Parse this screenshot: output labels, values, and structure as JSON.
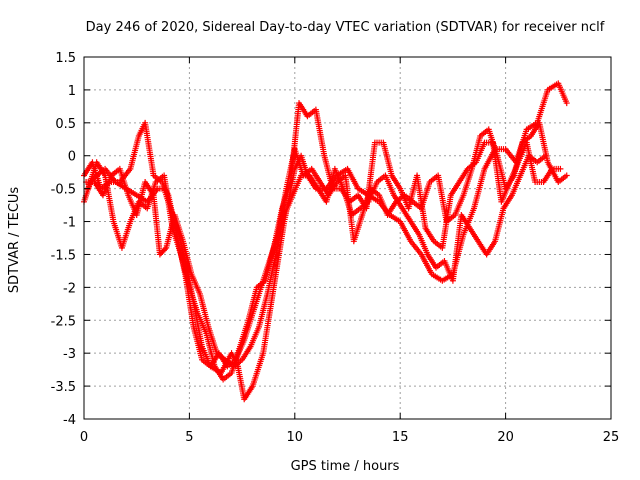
{
  "chart_data": {
    "type": "scatter",
    "title": "Day 246 of 2020, Sidereal Day-to-day VTEC variation (SDTVAR) for receiver nclf",
    "xlabel": "GPS time / hours",
    "ylabel": "SDTVAR / TECUs",
    "xlim": [
      0,
      25
    ],
    "ylim": [
      -4,
      1.5
    ],
    "xticks": [
      0,
      5,
      10,
      15,
      20,
      25
    ],
    "xtick_labels": [
      "0",
      "5",
      "10",
      "15",
      "20",
      "25"
    ],
    "yticks": [
      -4,
      -3.5,
      -3,
      -2.5,
      -2,
      -1.5,
      -1,
      -0.5,
      0,
      0.5,
      1,
      1.5
    ],
    "ytick_labels": [
      "-4",
      "-3.5",
      "-3",
      "-2.5",
      "-2",
      "-1.5",
      "-1",
      "-0.5",
      "0",
      "0.5",
      "1",
      "1.5"
    ],
    "grid": true,
    "marker": "plus",
    "color": "#ff0000",
    "series": [
      {
        "x": [
          0.0,
          0.3,
          0.6,
          1.0,
          1.5,
          2.0,
          2.5,
          3.0,
          3.5,
          3.8,
          4.2,
          4.5,
          4.8,
          5.0,
          5.3,
          5.6,
          6.0,
          6.5,
          7.0,
          7.3,
          7.6,
          8.0,
          8.5,
          9.0,
          9.5,
          10.0,
          10.3,
          10.6,
          11.0,
          11.5,
          12.0,
          12.5,
          13.0,
          13.5,
          14.0,
          14.5,
          15.0,
          15.5,
          16.0,
          16.5,
          17.0,
          17.5,
          18.0,
          18.5,
          19.0,
          19.5,
          20.0,
          20.5,
          21.0,
          21.5,
          22.0,
          22.5,
          22.9
        ],
        "y": [
          -0.7,
          -0.4,
          -0.3,
          -0.2,
          -0.4,
          -0.5,
          -0.6,
          -0.7,
          -0.5,
          -0.5,
          -0.9,
          -1.2,
          -1.6,
          -1.9,
          -2.4,
          -2.9,
          -3.2,
          -3.3,
          -3.0,
          -3.2,
          -3.7,
          -3.5,
          -3.0,
          -2.0,
          -1.0,
          -0.2,
          0.0,
          -0.3,
          -0.5,
          -0.5,
          -0.3,
          -0.2,
          -0.5,
          -0.6,
          -0.7,
          -0.9,
          -1.0,
          -1.3,
          -1.5,
          -1.8,
          -1.9,
          -1.8,
          -1.2,
          -0.8,
          -0.2,
          0.1,
          0.1,
          -0.1,
          0.4,
          0.5,
          1.0,
          1.1,
          0.8
        ]
      },
      {
        "x": [
          0.0,
          0.4,
          0.8,
          1.2,
          1.7,
          2.2,
          2.6,
          2.9,
          3.3,
          3.7,
          4.0,
          4.4,
          4.8,
          5.2,
          5.6,
          6.0,
          6.4,
          6.8,
          7.2,
          7.6,
          8.0,
          8.4,
          8.8,
          9.2,
          9.6,
          10.0,
          10.4,
          10.8,
          11.2,
          11.6,
          12.0,
          12.4,
          12.8,
          13.2,
          13.6,
          14.0,
          14.4,
          14.8,
          15.2,
          15.6,
          16.0,
          16.4,
          16.8,
          17.2,
          17.6,
          18.0,
          18.4,
          18.8,
          19.2,
          19.6,
          20.0,
          20.4,
          20.8,
          21.2,
          21.6,
          22.0,
          22.5,
          22.9
        ],
        "y": [
          -0.3,
          -0.1,
          -0.5,
          -0.4,
          -0.4,
          -0.2,
          0.3,
          0.5,
          -0.3,
          -0.4,
          -0.6,
          -1.2,
          -1.8,
          -2.6,
          -3.1,
          -3.2,
          -3.0,
          -3.2,
          -3.1,
          -2.8,
          -2.4,
          -2.0,
          -1.6,
          -1.2,
          -0.5,
          0.1,
          -0.3,
          -0.2,
          -0.4,
          -0.6,
          -0.4,
          -0.3,
          -1.3,
          -0.9,
          -0.5,
          -0.6,
          -0.9,
          -0.7,
          -0.6,
          -0.7,
          -0.8,
          -0.4,
          -0.3,
          -1.0,
          -0.9,
          -0.6,
          -0.2,
          0.3,
          0.4,
          0.0,
          -0.5,
          -0.3,
          0.2,
          0.3,
          0.5,
          -0.1,
          -0.4,
          -0.3
        ]
      },
      {
        "x": [
          0.2,
          0.6,
          1.0,
          1.4,
          1.8,
          2.2,
          2.6,
          3.0,
          3.4,
          3.8,
          4.2,
          4.6,
          5.0,
          5.4,
          5.8,
          6.2,
          6.6,
          7.0,
          7.4,
          7.8,
          8.2,
          8.6,
          9.0,
          9.4,
          9.8,
          10.2,
          10.6,
          11.0,
          11.4,
          11.8,
          12.2,
          12.6,
          13.0,
          13.4,
          13.8,
          14.2,
          14.6,
          15.0,
          15.4,
          15.8,
          16.2,
          16.6,
          17.0,
          17.4,
          17.8,
          18.2,
          18.6,
          19.0,
          19.4,
          19.8,
          20.2,
          20.6,
          21.0,
          21.4,
          21.8,
          22.2,
          22.6
        ],
        "y": [
          -0.5,
          -0.1,
          -0.3,
          -1.0,
          -1.4,
          -1.0,
          -0.7,
          -0.8,
          -0.4,
          -0.3,
          -1.1,
          -1.5,
          -2.0,
          -2.4,
          -2.7,
          -3.2,
          -3.4,
          -3.3,
          -2.9,
          -2.5,
          -2.0,
          -1.9,
          -1.4,
          -0.8,
          -0.4,
          0.8,
          0.6,
          0.7,
          0.0,
          -0.5,
          -0.5,
          -0.7,
          -0.6,
          -0.8,
          0.2,
          0.2,
          -0.3,
          -0.5,
          -0.8,
          -0.3,
          -1.1,
          -1.3,
          -1.4,
          -0.6,
          -0.4,
          -0.2,
          -0.1,
          0.2,
          0.2,
          -0.7,
          -0.4,
          -0.1,
          0.2,
          -0.4,
          -0.4,
          -0.2,
          -0.2
        ]
      },
      {
        "x": [
          0.1,
          0.5,
          0.9,
          1.3,
          1.7,
          2.1,
          2.5,
          2.9,
          3.3,
          3.6,
          3.9,
          4.3,
          4.7,
          5.1,
          5.5,
          5.9,
          6.3,
          6.7,
          7.1,
          7.5,
          7.9,
          8.3,
          8.7,
          9.1,
          9.5,
          9.9,
          10.3,
          10.7,
          11.1,
          11.5,
          11.9,
          12.3,
          12.7,
          13.1,
          13.5,
          13.9,
          14.3,
          14.7,
          15.1,
          15.5,
          15.9,
          16.3,
          16.7,
          17.1,
          17.5,
          17.9,
          18.3,
          18.7,
          19.1,
          19.5,
          19.9,
          20.3,
          20.7,
          21.1,
          21.5,
          21.9
        ],
        "y": [
          -0.4,
          -0.4,
          -0.6,
          -0.3,
          -0.2,
          -0.6,
          -0.9,
          -0.4,
          -0.6,
          -1.5,
          -1.4,
          -0.9,
          -1.3,
          -1.8,
          -2.1,
          -2.6,
          -3.0,
          -3.1,
          -3.2,
          -3.1,
          -2.9,
          -2.6,
          -2.1,
          -1.5,
          -0.9,
          -0.6,
          -0.3,
          -0.3,
          -0.5,
          -0.7,
          -0.2,
          -0.5,
          -0.9,
          -0.8,
          -0.7,
          -0.4,
          -0.3,
          -0.6,
          -0.8,
          -1.0,
          -1.2,
          -1.5,
          -1.7,
          -1.6,
          -1.9,
          -0.9,
          -1.1,
          -1.3,
          -1.5,
          -1.3,
          -0.8,
          -0.6,
          -0.3,
          0.0,
          -0.1,
          0.0
        ]
      }
    ]
  }
}
